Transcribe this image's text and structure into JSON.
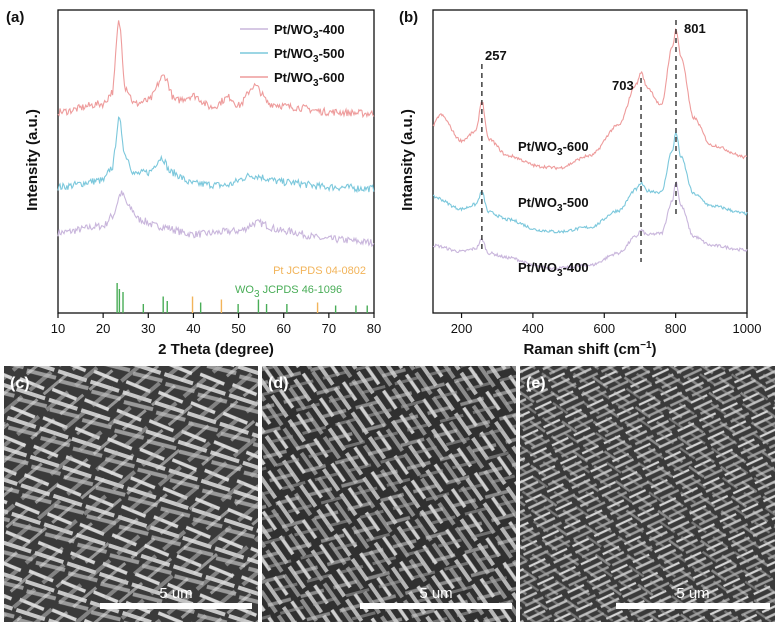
{
  "chart_data": [
    {
      "panel": "(a)",
      "type": "line",
      "xlabel": "2 Theta (degree)",
      "ylabel": "Intensity (a.u.)",
      "xlim": [
        10,
        80
      ],
      "xticks": [
        10,
        20,
        30,
        40,
        50,
        60,
        70,
        80
      ],
      "yticks_shown": false,
      "legend_position": "top-right",
      "series": [
        {
          "name": "Pt/WO3-400",
          "name_sub": {
            "base": "Pt/WO",
            "sub": "3",
            "suffix": "-400"
          },
          "color": "#c9b6dc",
          "x": [
            10,
            20,
            22,
            24,
            26,
            28,
            32,
            40,
            50,
            54,
            60,
            70,
            80
          ],
          "y": [
            0.26,
            0.3,
            0.36,
            0.5,
            0.41,
            0.34,
            0.3,
            0.25,
            0.27,
            0.32,
            0.27,
            0.22,
            0.2
          ]
        },
        {
          "name": "Pt/WO3-500",
          "name_sub": {
            "base": "Pt/WO",
            "sub": "3",
            "suffix": "-500"
          },
          "color": "#7cc8dc",
          "x": [
            10,
            20,
            22,
            23.5,
            25,
            27,
            30,
            33,
            35,
            40,
            47,
            53,
            60,
            70,
            80
          ],
          "y": [
            0.54,
            0.58,
            0.66,
            0.95,
            0.73,
            0.62,
            0.63,
            0.72,
            0.63,
            0.56,
            0.55,
            0.61,
            0.57,
            0.54,
            0.53
          ]
        },
        {
          "name": "Pt/WO3-600",
          "name_sub": {
            "base": "Pt/WO",
            "sub": "3",
            "suffix": "-600"
          },
          "color": "#ee9c9c",
          "x": [
            10,
            20,
            22,
            23.5,
            25,
            27,
            30,
            33.5,
            36,
            40,
            44,
            48,
            50,
            53.5,
            57,
            62,
            70,
            80
          ],
          "y": [
            1.0,
            1.05,
            1.12,
            1.55,
            1.15,
            1.05,
            1.07,
            1.22,
            1.07,
            1.1,
            1.03,
            1.09,
            1.04,
            1.16,
            1.05,
            1.03,
            1.0,
            0.99
          ]
        }
      ],
      "reference_lines": [
        {
          "label": "Pt JCPDS 04-0802",
          "color": "#f2b45a",
          "x": [
            39.8,
            46.2,
            67.5,
            81.3
          ],
          "h": [
            0.55,
            0.45,
            0.35,
            0.3
          ]
        },
        {
          "label": "WO3 JCPDS 46-1096",
          "label_sub": {
            "base": "WO",
            "sub": "3",
            "suffix": " JCPDS 46-1096"
          },
          "color": "#49ad57",
          "x": [
            23.1,
            23.6,
            24.4,
            28.9,
            33.3,
            34.2,
            41.6,
            49.9,
            54.4,
            56.2,
            60.7,
            71.5,
            76.0,
            78.5
          ],
          "h": [
            1.0,
            0.8,
            0.7,
            0.3,
            0.55,
            0.4,
            0.35,
            0.3,
            0.45,
            0.3,
            0.3,
            0.25,
            0.25,
            0.25
          ]
        }
      ]
    },
    {
      "panel": "(b)",
      "type": "line",
      "xlabel": "Raman shift (cm",
      "xlabel_sup": "−1",
      "xlabel_close": ")",
      "ylabel": "Intansity (a.u.)",
      "xlim": [
        120,
        1000
      ],
      "xticks": [
        200,
        400,
        600,
        800,
        1000
      ],
      "yticks_shown": false,
      "annotations": [
        "257",
        "703",
        "801"
      ],
      "dashed_lines_at": [
        257,
        703,
        801
      ],
      "series": [
        {
          "name": "Pt/WO3-400",
          "name_sub": {
            "base": "Pt/WO",
            "sub": "3",
            "suffix": "-400"
          },
          "color": "#c9b6dc",
          "x": [
            120,
            200,
            240,
            257,
            275,
            330,
            420,
            470,
            560,
            640,
            690,
            703,
            720,
            760,
            790,
            801,
            815,
            850,
            900,
            1000
          ],
          "y": [
            0.26,
            0.22,
            0.24,
            0.3,
            0.21,
            0.18,
            0.12,
            0.11,
            0.13,
            0.21,
            0.32,
            0.36,
            0.33,
            0.34,
            0.55,
            0.68,
            0.52,
            0.32,
            0.26,
            0.23
          ]
        },
        {
          "name": "Pt/WO3-500",
          "name_sub": {
            "base": "Pt/WO",
            "sub": "3",
            "suffix": "-500"
          },
          "color": "#7cc8dc",
          "x": [
            120,
            200,
            240,
            257,
            275,
            330,
            420,
            470,
            560,
            640,
            690,
            703,
            720,
            760,
            790,
            801,
            815,
            850,
            900,
            1000
          ],
          "y": [
            0.58,
            0.5,
            0.53,
            0.61,
            0.48,
            0.43,
            0.36,
            0.35,
            0.38,
            0.49,
            0.63,
            0.67,
            0.62,
            0.61,
            0.88,
            1.0,
            0.84,
            0.6,
            0.52,
            0.47
          ]
        },
        {
          "name": "Pt/WO3-600",
          "name_sub": {
            "base": "Pt/WO",
            "sub": "3",
            "suffix": "-600"
          },
          "color": "#ee9c9c",
          "x": [
            120,
            140,
            200,
            240,
            257,
            275,
            330,
            420,
            470,
            560,
            640,
            690,
            703,
            720,
            760,
            790,
            801,
            815,
            850,
            900,
            1000
          ],
          "y": [
            1.05,
            1.12,
            0.95,
            1.01,
            1.21,
            0.96,
            0.85,
            0.78,
            0.77,
            0.85,
            1.05,
            1.32,
            1.4,
            1.3,
            1.18,
            1.56,
            1.68,
            1.5,
            1.1,
            0.92,
            0.84
          ]
        }
      ]
    }
  ],
  "panel_labels": {
    "a": "(a)",
    "b": "(b)",
    "c": "(c)",
    "d": "(d)",
    "e": "(e)"
  },
  "sem_images": [
    {
      "label": "(c)",
      "scale_bar": "5 um"
    },
    {
      "label": "(d)",
      "scale_bar": "5 um"
    },
    {
      "label": "(e)",
      "scale_bar": "5 um"
    }
  ]
}
